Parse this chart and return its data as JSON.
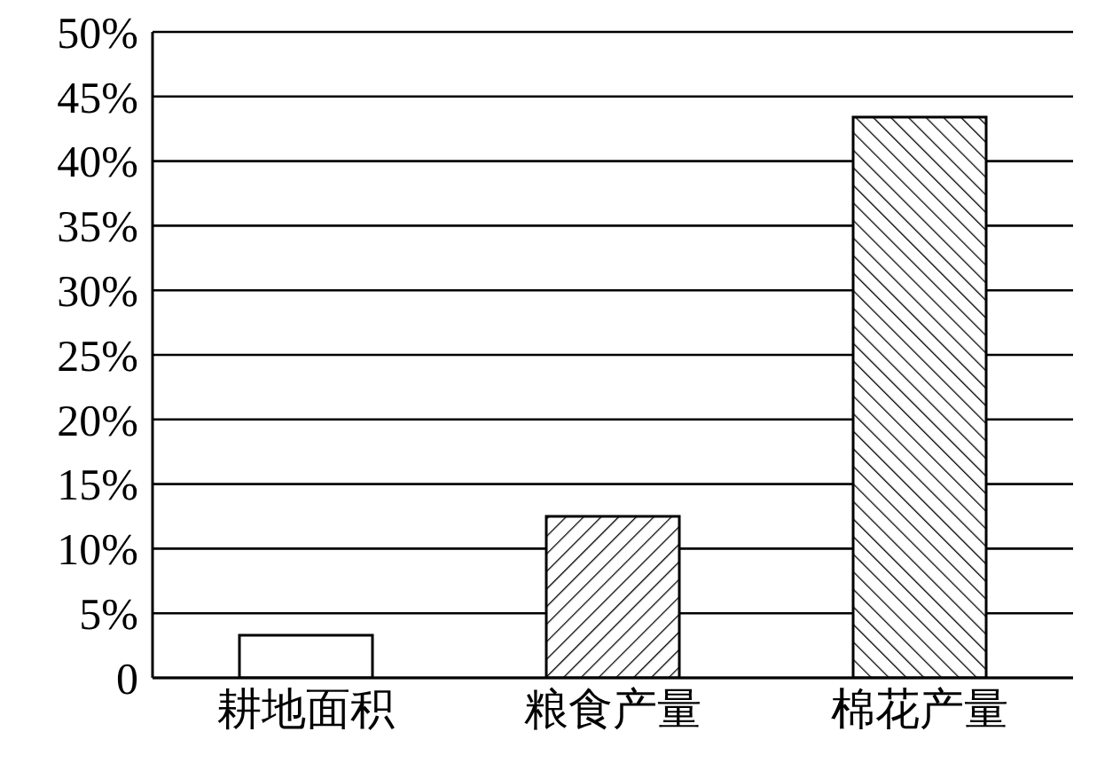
{
  "chart_data": {
    "type": "bar",
    "categories": [
      "耕地面积",
      "粮食产量",
      "棉花产量"
    ],
    "values": [
      3.3,
      12.5,
      43.4
    ],
    "colors": [
      "#ffffff",
      "#000000",
      "#000000"
    ],
    "ylim": [
      0,
      50
    ],
    "yticks": [
      {
        "value": 0,
        "label": "0"
      },
      {
        "value": 5,
        "label": "5%"
      },
      {
        "value": 10,
        "label": "10%"
      },
      {
        "value": 15,
        "label": "15%"
      },
      {
        "value": 20,
        "label": "20%"
      },
      {
        "value": 25,
        "label": "25%"
      },
      {
        "value": 30,
        "label": "30%"
      },
      {
        "value": 35,
        "label": "35%"
      },
      {
        "value": 40,
        "label": "40%"
      },
      {
        "value": 45,
        "label": "45%"
      },
      {
        "value": 50,
        "label": "50%"
      }
    ],
    "grid": "y"
  }
}
